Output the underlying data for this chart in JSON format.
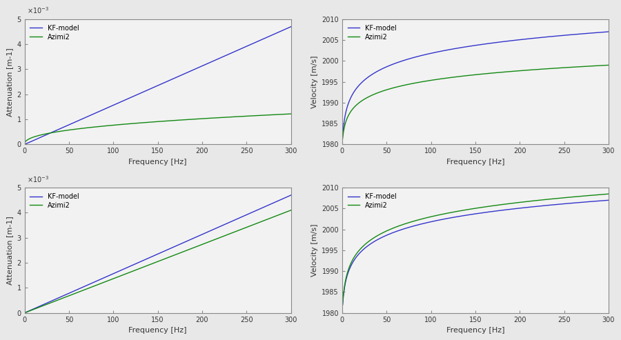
{
  "freq_max": 300,
  "freq_points": 600,
  "top_left": {
    "kf_att_at300": 0.0047,
    "az2_a": 0.00122,
    "az2_power": 0.42,
    "ylabel": "Attenuation [m-1]",
    "xlabel": "Frequency [Hz]",
    "ylim": [
      0,
      0.005
    ],
    "ytick_vals": [
      0,
      0.001,
      0.002,
      0.003,
      0.004,
      0.005
    ]
  },
  "top_right": {
    "v0": 1980.0,
    "kf_amp": 27.0,
    "az2_amp": 19.0,
    "ylabel": "Velocity [m/s]",
    "xlabel": "Frequency [Hz]",
    "ylim": [
      1980,
      2010
    ],
    "ytick_vals": [
      1980,
      1985,
      1990,
      1995,
      2000,
      2005,
      2010
    ]
  },
  "bot_left": {
    "kf_att_at300": 0.0047,
    "az2_att_at300": 0.0041,
    "ylabel": "Attenuation [m-1]",
    "xlabel": "Frequency [Hz]",
    "ylim": [
      0,
      0.005
    ],
    "ytick_vals": [
      0,
      0.001,
      0.002,
      0.003,
      0.004,
      0.005
    ]
  },
  "bot_right": {
    "v0": 1980.0,
    "kf_amp": 27.0,
    "az2_amp": 28.5,
    "ylabel": "Velocity [m/s]",
    "xlabel": "Frequency [Hz]",
    "ylim": [
      1980,
      2010
    ],
    "ytick_vals": [
      1980,
      1985,
      1990,
      1995,
      2000,
      2005,
      2010
    ]
  },
  "kf_color": "#3333cc",
  "az2_color": "#118811",
  "legend_kf": "KF-model",
  "legend_az": "Azimi2",
  "line_width": 1.0,
  "fig_bg": "#f0f0f0",
  "axes_bg": "#f8f8f8",
  "matlab_gray": "#d3d3d3",
  "tick_labelsize": 7,
  "label_fontsize": 8,
  "legend_fontsize": 7
}
